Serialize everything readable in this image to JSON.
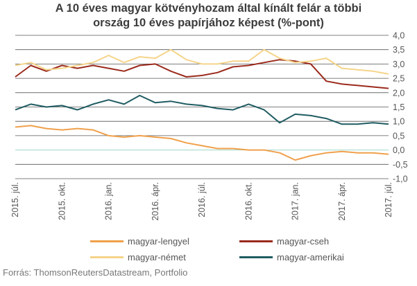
{
  "title_line1": "A 10 éves magyar kötvényhozam által kínált felár a többi",
  "title_line2": "ország 10 éves papírjához képest (%-pont)",
  "source": "Forrás: ThomsonReutersDatastream, Portfolio",
  "chart_data": {
    "type": "line",
    "title": "A 10 éves magyar kötvényhozam által kínált felár a többi ország 10 éves papírjához képest (%-pont)",
    "ylim": [
      -1.0,
      4.0
    ],
    "yticks": [
      "4,0",
      "3,5",
      "3,0",
      "2,5",
      "2,0",
      "1,5",
      "1,0",
      "0,5",
      "0,0",
      "-0,5",
      "-1,0"
    ],
    "xticks": [
      "2015. júl.",
      "2015. okt.",
      "2016. jan.",
      "2016. ápr.",
      "2016. júl.",
      "2016. okt.",
      "2017. jan.",
      "2017. ápr.",
      "2017. júl."
    ],
    "grid": true,
    "legend_position": "bottom",
    "x": [
      "2015-07",
      "2015-08",
      "2015-09",
      "2015-10",
      "2015-11",
      "2015-12",
      "2016-01",
      "2016-02",
      "2016-03",
      "2016-04",
      "2016-05",
      "2016-06",
      "2016-07",
      "2016-08",
      "2016-09",
      "2016-10",
      "2016-11",
      "2016-12",
      "2017-01",
      "2017-02",
      "2017-03",
      "2017-04",
      "2017-05",
      "2017-06",
      "2017-07"
    ],
    "series": [
      {
        "name": "magyar-lengyel",
        "color": "#f0a04b",
        "values": [
          0.8,
          0.85,
          0.75,
          0.7,
          0.75,
          0.7,
          0.5,
          0.45,
          0.5,
          0.45,
          0.4,
          0.25,
          0.15,
          0.05,
          0.05,
          0.0,
          0.0,
          -0.1,
          -0.35,
          -0.2,
          -0.1,
          -0.05,
          -0.1,
          -0.1,
          -0.15
        ]
      },
      {
        "name": "magyar-cseh",
        "color": "#9b2a1c",
        "values": [
          2.55,
          2.95,
          2.75,
          2.95,
          2.85,
          2.95,
          2.85,
          2.75,
          2.95,
          3.0,
          2.75,
          2.55,
          2.6,
          2.7,
          2.9,
          2.95,
          3.05,
          3.15,
          3.1,
          3.0,
          2.4,
          2.3,
          2.25,
          2.2,
          2.15
        ]
      },
      {
        "name": "magyar-német",
        "color": "#f5d48a",
        "values": [
          2.95,
          3.05,
          2.8,
          2.85,
          2.95,
          3.05,
          3.3,
          3.05,
          3.25,
          3.2,
          3.5,
          3.15,
          3.0,
          3.0,
          3.1,
          3.1,
          3.5,
          3.2,
          3.05,
          3.1,
          3.2,
          2.85,
          2.8,
          2.75,
          2.65
        ]
      },
      {
        "name": "magyar-amerikai",
        "color": "#1f5c62",
        "values": [
          1.4,
          1.6,
          1.5,
          1.55,
          1.4,
          1.6,
          1.75,
          1.6,
          1.9,
          1.65,
          1.7,
          1.6,
          1.55,
          1.45,
          1.4,
          1.6,
          1.4,
          0.95,
          1.25,
          1.2,
          1.1,
          0.9,
          0.9,
          0.95,
          0.9
        ]
      }
    ]
  }
}
